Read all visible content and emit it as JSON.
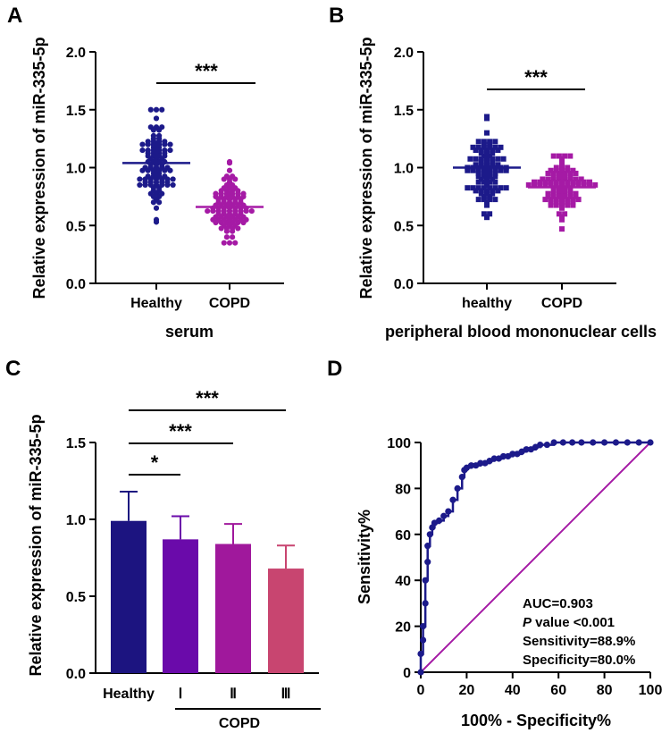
{
  "panels": {
    "A": "A",
    "B": "B",
    "C": "C",
    "D": "D"
  },
  "chart_data": [
    {
      "panel": "A",
      "type": "scatter",
      "ylabel": "Relative expression of miR-335-5p",
      "xlabel": "serum",
      "categories": [
        "Healthy",
        "COPD"
      ],
      "ylim": [
        0.0,
        2.0
      ],
      "yticks": [
        "0.0",
        "0.5",
        "1.0",
        "1.5",
        "2.0"
      ],
      "group_means": [
        1.04,
        0.66
      ],
      "group_ranges": [
        [
          0.53,
          1.5
        ],
        [
          0.35,
          1.04
        ]
      ],
      "n_per_group": 100,
      "colors": [
        "#1c1a8a",
        "#a51aa5"
      ],
      "marker": "circle",
      "significance": [
        {
          "from": "Healthy",
          "to": "COPD",
          "label": "***"
        }
      ]
    },
    {
      "panel": "B",
      "type": "scatter",
      "ylabel": "Relative expression of miR-335-5p",
      "xlabel": "peripheral blood mononuclear cells",
      "categories": [
        "healthy",
        "COPD"
      ],
      "ylim": [
        0.0,
        2.0
      ],
      "yticks": [
        "0.0",
        "0.5",
        "1.0",
        "1.5",
        "2.0"
      ],
      "group_means": [
        1.0,
        0.83
      ],
      "group_ranges": [
        [
          0.57,
          1.44
        ],
        [
          0.47,
          1.1
        ]
      ],
      "n_per_group": 100,
      "colors": [
        "#1c1a8a",
        "#a51aa5"
      ],
      "marker": "square",
      "significance": [
        {
          "from": "healthy",
          "to": "COPD",
          "label": "***"
        }
      ]
    },
    {
      "panel": "C",
      "type": "bar",
      "ylabel": "Relative expression of miR-335-5p",
      "categories": [
        "Healthy",
        "Ⅰ",
        "Ⅱ",
        "Ⅲ"
      ],
      "group_label": "COPD",
      "values": [
        0.99,
        0.87,
        0.84,
        0.68
      ],
      "errors": [
        0.19,
        0.15,
        0.13,
        0.15
      ],
      "ylim": [
        0.0,
        1.5
      ],
      "yticks": [
        "0.0",
        "0.5",
        "1.0",
        "1.5"
      ],
      "colors": [
        "#1c1480",
        "#6a0aaa",
        "#a0189c",
        "#c84570"
      ],
      "significance": [
        {
          "from": "Healthy",
          "to": "Ⅰ",
          "label": "*"
        },
        {
          "from": "Healthy",
          "to": "Ⅱ",
          "label": "***"
        },
        {
          "from": "Healthy",
          "to": "Ⅲ",
          "label": "***"
        }
      ]
    },
    {
      "panel": "D",
      "type": "line",
      "subtype": "roc",
      "xlabel": "100% - Specificity%",
      "ylabel": "Sensitivity%",
      "xlim": [
        0,
        100
      ],
      "ylim": [
        0,
        100
      ],
      "xticks": [
        "0",
        "20",
        "40",
        "60",
        "80",
        "100"
      ],
      "yticks": [
        "0",
        "20",
        "40",
        "60",
        "80",
        "100"
      ],
      "x": [
        0,
        0,
        1,
        1,
        2,
        2,
        3,
        3,
        4,
        5,
        6,
        8,
        10,
        12,
        14,
        16,
        18,
        19,
        20,
        22,
        24,
        26,
        28,
        30,
        32,
        34,
        36,
        38,
        40,
        42,
        44,
        46,
        48,
        50,
        52,
        55,
        58,
        62,
        66,
        70,
        75,
        80,
        85,
        90,
        95,
        100
      ],
      "y": [
        0,
        8,
        14,
        20,
        30,
        40,
        48,
        55,
        60,
        63,
        65,
        66,
        68,
        70,
        75,
        80,
        85,
        88,
        89,
        90,
        90,
        91,
        91,
        92,
        93,
        93,
        94,
        94,
        95,
        95,
        96,
        97,
        97,
        98,
        99,
        99,
        100,
        100,
        100,
        100,
        100,
        100,
        100,
        100,
        100,
        100
      ],
      "reference_line": {
        "x": [
          0,
          100
        ],
        "y": [
          0,
          100
        ]
      },
      "line_color": "#1c1a8a",
      "ref_color": "#a51aa5",
      "annotations": {
        "auc": "AUC=0.903",
        "p_symbol": "P",
        "p_text": " value <0.001",
        "sensitivity": "Sensitivity=88.9%",
        "specificity": "Specificity=80.0%"
      }
    }
  ]
}
